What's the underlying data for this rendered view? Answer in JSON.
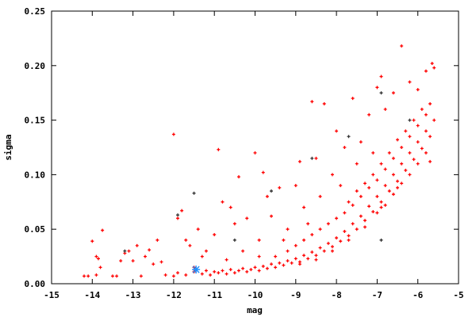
{
  "chart_data": {
    "type": "scatter",
    "title": "",
    "xlabel": "mag",
    "ylabel": "sigma",
    "xlim": [
      -15,
      -5
    ],
    "ylim": [
      0,
      0.25
    ],
    "xticks": [
      "-15",
      "-14",
      "-13",
      "-12",
      "-11",
      "-10",
      "-9",
      "-8",
      "-7",
      "-6",
      "-5"
    ],
    "yticks": [
      "0.00",
      "0.05",
      "0.10",
      "0.15",
      "0.20",
      "0.25"
    ],
    "grid": false,
    "legend": "none",
    "series": [
      {
        "color": "#ff0000",
        "marker": "plus",
        "points": [
          [
            -12.2,
            0.008
          ],
          [
            -12.0,
            0.007
          ],
          [
            -11.9,
            0.01
          ],
          [
            -11.7,
            0.008
          ],
          [
            -11.5,
            0.011
          ],
          [
            -11.3,
            0.009
          ],
          [
            -11.2,
            0.012
          ],
          [
            -11.1,
            0.008
          ],
          [
            -11.0,
            0.011
          ],
          [
            -10.9,
            0.01
          ],
          [
            -10.8,
            0.012
          ],
          [
            -10.7,
            0.009
          ],
          [
            -10.6,
            0.013
          ],
          [
            -10.5,
            0.01
          ],
          [
            -10.4,
            0.012
          ],
          [
            -10.3,
            0.014
          ],
          [
            -10.2,
            0.011
          ],
          [
            -10.1,
            0.013
          ],
          [
            -10.0,
            0.015
          ],
          [
            -9.9,
            0.012
          ],
          [
            -9.8,
            0.016
          ],
          [
            -9.7,
            0.014
          ],
          [
            -9.6,
            0.018
          ],
          [
            -9.5,
            0.015
          ],
          [
            -9.4,
            0.019
          ],
          [
            -9.3,
            0.017
          ],
          [
            -9.2,
            0.021
          ],
          [
            -9.1,
            0.019
          ],
          [
            -9.0,
            0.023
          ],
          [
            -8.9,
            0.02
          ],
          [
            -8.8,
            0.026
          ],
          [
            -8.7,
            0.023
          ],
          [
            -8.6,
            0.029
          ],
          [
            -8.5,
            0.026
          ],
          [
            -8.4,
            0.033
          ],
          [
            -8.3,
            0.03
          ],
          [
            -8.2,
            0.037
          ],
          [
            -8.1,
            0.034
          ],
          [
            -8.0,
            0.042
          ],
          [
            -7.9,
            0.039
          ],
          [
            -7.8,
            0.048
          ],
          [
            -7.7,
            0.044
          ],
          [
            -7.6,
            0.055
          ],
          [
            -7.5,
            0.05
          ],
          [
            -7.4,
            0.062
          ],
          [
            -7.3,
            0.058
          ],
          [
            -7.2,
            0.071
          ],
          [
            -7.1,
            0.066
          ],
          [
            -7.0,
            0.08
          ],
          [
            -6.9,
            0.075
          ],
          [
            -6.8,
            0.09
          ],
          [
            -6.7,
            0.085
          ],
          [
            -6.6,
            0.1
          ],
          [
            -6.5,
            0.094
          ],
          [
            -6.4,
            0.11
          ],
          [
            -6.3,
            0.104
          ],
          [
            -6.2,
            0.12
          ],
          [
            -6.1,
            0.114
          ],
          [
            -6.0,
            0.13
          ],
          [
            -5.9,
            0.124
          ],
          [
            -5.8,
            0.14
          ],
          [
            -5.7,
            0.135
          ],
          [
            -5.6,
            0.15
          ],
          [
            -9.5,
            0.025
          ],
          [
            -9.2,
            0.03
          ],
          [
            -9.0,
            0.035
          ],
          [
            -8.8,
            0.04
          ],
          [
            -8.6,
            0.045
          ],
          [
            -8.4,
            0.05
          ],
          [
            -8.2,
            0.055
          ],
          [
            -8.0,
            0.06
          ],
          [
            -7.8,
            0.065
          ],
          [
            -7.6,
            0.072
          ],
          [
            -7.4,
            0.08
          ],
          [
            -7.2,
            0.088
          ],
          [
            -7.0,
            0.095
          ],
          [
            -6.8,
            0.105
          ],
          [
            -6.6,
            0.115
          ],
          [
            -6.4,
            0.125
          ],
          [
            -6.2,
            0.135
          ],
          [
            -6.0,
            0.145
          ],
          [
            -5.8,
            0.155
          ],
          [
            -5.7,
            0.165
          ],
          [
            -5.9,
            0.16
          ],
          [
            -6.1,
            0.15
          ],
          [
            -6.3,
            0.14
          ],
          [
            -6.5,
            0.132
          ],
          [
            -6.7,
            0.12
          ],
          [
            -6.9,
            0.11
          ],
          [
            -7.1,
            0.1
          ],
          [
            -7.3,
            0.092
          ],
          [
            -7.5,
            0.085
          ],
          [
            -7.7,
            0.075
          ],
          [
            -7.0,
            0.065
          ],
          [
            -6.8,
            0.072
          ],
          [
            -6.6,
            0.082
          ],
          [
            -6.4,
            0.092
          ],
          [
            -6.2,
            0.1
          ],
          [
            -6.0,
            0.11
          ],
          [
            -5.8,
            0.12
          ],
          [
            -5.7,
            0.112
          ],
          [
            -6.5,
            0.088
          ],
          [
            -6.9,
            0.07
          ],
          [
            -7.3,
            0.052
          ],
          [
            -7.7,
            0.04
          ],
          [
            -8.1,
            0.03
          ],
          [
            -8.5,
            0.022
          ],
          [
            -8.9,
            0.018
          ],
          [
            -14.2,
            0.007
          ],
          [
            -14.1,
            0.007
          ],
          [
            -14.0,
            0.039
          ],
          [
            -13.9,
            0.025
          ],
          [
            -13.85,
            0.023
          ],
          [
            -13.8,
            0.015
          ],
          [
            -13.75,
            0.049
          ],
          [
            -13.9,
            0.008
          ],
          [
            -13.5,
            0.007
          ],
          [
            -13.4,
            0.007
          ],
          [
            -13.3,
            0.021
          ],
          [
            -13.2,
            0.028
          ],
          [
            -13.1,
            0.03
          ],
          [
            -13.0,
            0.021
          ],
          [
            -12.8,
            0.007
          ],
          [
            -12.7,
            0.025
          ],
          [
            -12.6,
            0.031
          ],
          [
            -12.5,
            0.018
          ],
          [
            -12.3,
            0.02
          ],
          [
            -12.0,
            0.137
          ],
          [
            -11.9,
            0.06
          ],
          [
            -11.8,
            0.067
          ],
          [
            -11.7,
            0.04
          ],
          [
            -11.6,
            0.035
          ],
          [
            -11.4,
            0.05
          ],
          [
            -11.3,
            0.025
          ],
          [
            -11.0,
            0.045
          ],
          [
            -10.9,
            0.123
          ],
          [
            -10.8,
            0.075
          ],
          [
            -10.6,
            0.07
          ],
          [
            -10.5,
            0.055
          ],
          [
            -10.4,
            0.098
          ],
          [
            -10.2,
            0.06
          ],
          [
            -10.0,
            0.12
          ],
          [
            -9.9,
            0.04
          ],
          [
            -9.8,
            0.102
          ],
          [
            -9.7,
            0.08
          ],
          [
            -9.6,
            0.062
          ],
          [
            -9.4,
            0.088
          ],
          [
            -9.2,
            0.05
          ],
          [
            -9.0,
            0.09
          ],
          [
            -8.9,
            0.112
          ],
          [
            -8.8,
            0.07
          ],
          [
            -8.6,
            0.167
          ],
          [
            -8.5,
            0.115
          ],
          [
            -8.3,
            0.165
          ],
          [
            -8.1,
            0.1
          ],
          [
            -8.0,
            0.14
          ],
          [
            -7.8,
            0.125
          ],
          [
            -7.6,
            0.17
          ],
          [
            -7.4,
            0.13
          ],
          [
            -7.2,
            0.155
          ],
          [
            -7.0,
            0.18
          ],
          [
            -6.9,
            0.19
          ],
          [
            -6.8,
            0.16
          ],
          [
            -6.6,
            0.175
          ],
          [
            -6.4,
            0.218
          ],
          [
            -6.2,
            0.185
          ],
          [
            -6.0,
            0.178
          ],
          [
            -5.8,
            0.195
          ],
          [
            -5.65,
            0.202
          ],
          [
            -5.6,
            0.198
          ],
          [
            -12.4,
            0.04
          ],
          [
            -12.9,
            0.035
          ],
          [
            -11.5,
            0.015
          ],
          [
            -11.2,
            0.03
          ],
          [
            -10.7,
            0.022
          ],
          [
            -10.3,
            0.03
          ],
          [
            -9.9,
            0.025
          ],
          [
            -9.3,
            0.04
          ],
          [
            -8.7,
            0.055
          ],
          [
            -8.4,
            0.08
          ],
          [
            -7.9,
            0.09
          ],
          [
            -7.5,
            0.11
          ],
          [
            -7.1,
            0.12
          ]
        ]
      },
      {
        "color": "#333333",
        "marker": "plus",
        "points": [
          [
            -13.2,
            0.03
          ],
          [
            -11.5,
            0.083
          ],
          [
            -11.9,
            0.063
          ],
          [
            -10.5,
            0.04
          ],
          [
            -9.6,
            0.085
          ],
          [
            -8.6,
            0.115
          ],
          [
            -7.7,
            0.135
          ],
          [
            -6.9,
            0.175
          ],
          [
            -6.2,
            0.15
          ],
          [
            -6.9,
            0.04
          ]
        ]
      },
      {
        "color": "#1e90ff",
        "marker": "star",
        "points": [
          [
            -11.45,
            0.013
          ]
        ]
      }
    ]
  }
}
